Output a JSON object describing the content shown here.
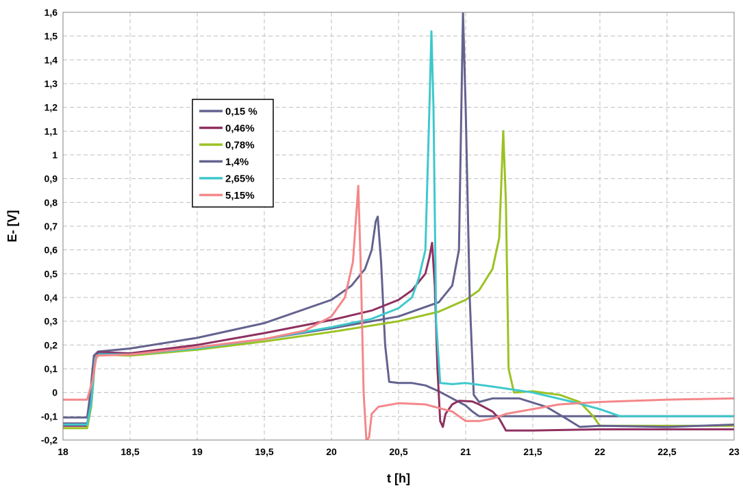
{
  "chart_data": {
    "type": "line",
    "title": "",
    "xlabel": "t [h]",
    "ylabel": "E- [V]",
    "xlim": [
      18,
      23
    ],
    "ylim": [
      -0.2,
      1.6
    ],
    "x_ticks": [
      "18",
      "18,5",
      "19",
      "19,5",
      "20",
      "20,5",
      "21",
      "21,5",
      "22",
      "22,5",
      "23"
    ],
    "y_ticks": [
      "-0,2",
      "-0,1",
      "0",
      "0,1",
      "0,2",
      "0,3",
      "0,4",
      "0,5",
      "0,6",
      "0,7",
      "0,8",
      "0,9",
      "1",
      "1,1",
      "1,2",
      "1,3",
      "1,4",
      "1,5",
      "1,6"
    ],
    "grid": true,
    "legend_position": "upper-left",
    "series": [
      {
        "name": "0,15 %",
        "color": "#63628F",
        "points": [
          [
            18.0,
            -0.105
          ],
          [
            18.18,
            -0.105
          ],
          [
            18.2,
            -0.02
          ],
          [
            18.23,
            0.155
          ],
          [
            18.26,
            0.172
          ],
          [
            18.5,
            0.185
          ],
          [
            19.0,
            0.23
          ],
          [
            19.5,
            0.292
          ],
          [
            20.0,
            0.39
          ],
          [
            20.15,
            0.45
          ],
          [
            20.25,
            0.52
          ],
          [
            20.3,
            0.6
          ],
          [
            20.33,
            0.72
          ],
          [
            20.345,
            0.74
          ],
          [
            20.37,
            0.55
          ],
          [
            20.4,
            0.2
          ],
          [
            20.43,
            0.045
          ],
          [
            20.5,
            0.04
          ],
          [
            20.6,
            0.04
          ],
          [
            20.7,
            0.03
          ],
          [
            20.8,
            0.005
          ],
          [
            20.9,
            -0.025
          ],
          [
            21.0,
            -0.055
          ],
          [
            21.05,
            -0.08
          ],
          [
            21.1,
            -0.1
          ],
          [
            21.3,
            -0.1
          ],
          [
            21.5,
            -0.1
          ],
          [
            22.0,
            -0.1
          ],
          [
            22.5,
            -0.1
          ],
          [
            23.0,
            -0.1
          ]
        ]
      },
      {
        "name": "0,46%",
        "color": "#8E3060",
        "points": [
          [
            18.0,
            -0.14
          ],
          [
            18.18,
            -0.14
          ],
          [
            18.21,
            -0.05
          ],
          [
            18.24,
            0.15
          ],
          [
            18.27,
            0.17
          ],
          [
            18.5,
            0.165
          ],
          [
            19.0,
            0.2
          ],
          [
            19.5,
            0.25
          ],
          [
            20.0,
            0.305
          ],
          [
            20.3,
            0.345
          ],
          [
            20.5,
            0.39
          ],
          [
            20.6,
            0.43
          ],
          [
            20.7,
            0.5
          ],
          [
            20.73,
            0.57
          ],
          [
            20.75,
            0.63
          ],
          [
            20.77,
            0.45
          ],
          [
            20.79,
            0.1
          ],
          [
            20.81,
            -0.12
          ],
          [
            20.83,
            -0.145
          ],
          [
            20.85,
            -0.09
          ],
          [
            20.9,
            -0.05
          ],
          [
            20.95,
            -0.035
          ],
          [
            21.05,
            -0.038
          ],
          [
            21.1,
            -0.05
          ],
          [
            21.2,
            -0.08
          ],
          [
            21.25,
            -0.11
          ],
          [
            21.3,
            -0.16
          ],
          [
            21.5,
            -0.16
          ],
          [
            22.0,
            -0.155
          ],
          [
            22.5,
            -0.155
          ],
          [
            23.0,
            -0.155
          ]
        ]
      },
      {
        "name": "0,78%",
        "color": "#9BC223",
        "points": [
          [
            18.0,
            -0.15
          ],
          [
            18.18,
            -0.15
          ],
          [
            18.21,
            -0.06
          ],
          [
            18.24,
            0.14
          ],
          [
            18.27,
            0.16
          ],
          [
            18.5,
            0.155
          ],
          [
            19.0,
            0.18
          ],
          [
            19.5,
            0.215
          ],
          [
            20.0,
            0.255
          ],
          [
            20.5,
            0.3
          ],
          [
            20.8,
            0.34
          ],
          [
            21.0,
            0.39
          ],
          [
            21.1,
            0.43
          ],
          [
            21.2,
            0.52
          ],
          [
            21.25,
            0.65
          ],
          [
            21.28,
            1.1
          ],
          [
            21.3,
            0.8
          ],
          [
            21.32,
            0.1
          ],
          [
            21.36,
            0.0
          ],
          [
            21.5,
            0.005
          ],
          [
            21.7,
            -0.01
          ],
          [
            21.85,
            -0.04
          ],
          [
            21.95,
            -0.1
          ],
          [
            22.0,
            -0.14
          ],
          [
            22.5,
            -0.14
          ],
          [
            23.0,
            -0.14
          ]
        ]
      },
      {
        "name": "1,4%",
        "color": "#63628F",
        "points": [
          [
            18.0,
            -0.13
          ],
          [
            18.18,
            -0.13
          ],
          [
            18.21,
            -0.04
          ],
          [
            18.24,
            0.15
          ],
          [
            18.27,
            0.165
          ],
          [
            18.5,
            0.16
          ],
          [
            19.0,
            0.19
          ],
          [
            19.5,
            0.225
          ],
          [
            20.0,
            0.27
          ],
          [
            20.5,
            0.32
          ],
          [
            20.8,
            0.38
          ],
          [
            20.9,
            0.45
          ],
          [
            20.95,
            0.6
          ],
          [
            20.98,
            1.6
          ],
          [
            21.0,
            1.2
          ],
          [
            21.03,
            0.4
          ],
          [
            21.06,
            -0.01
          ],
          [
            21.1,
            -0.04
          ],
          [
            21.2,
            -0.025
          ],
          [
            21.4,
            -0.025
          ],
          [
            21.6,
            -0.06
          ],
          [
            21.75,
            -0.11
          ],
          [
            21.85,
            -0.145
          ],
          [
            22.0,
            -0.14
          ],
          [
            22.5,
            -0.145
          ],
          [
            23.0,
            -0.135
          ]
        ]
      },
      {
        "name": "2,65%",
        "color": "#3EC8CC",
        "points": [
          [
            18.0,
            -0.135
          ],
          [
            18.18,
            -0.135
          ],
          [
            18.21,
            -0.045
          ],
          [
            18.24,
            0.145
          ],
          [
            18.27,
            0.16
          ],
          [
            18.5,
            0.16
          ],
          [
            19.0,
            0.185
          ],
          [
            19.5,
            0.225
          ],
          [
            20.0,
            0.275
          ],
          [
            20.3,
            0.31
          ],
          [
            20.5,
            0.355
          ],
          [
            20.6,
            0.4
          ],
          [
            20.65,
            0.48
          ],
          [
            20.7,
            0.6
          ],
          [
            20.73,
            1.2
          ],
          [
            20.745,
            1.52
          ],
          [
            20.76,
            1.2
          ],
          [
            20.78,
            0.3
          ],
          [
            20.81,
            0.04
          ],
          [
            20.9,
            0.035
          ],
          [
            21.0,
            0.04
          ],
          [
            21.2,
            0.025
          ],
          [
            21.5,
            0.0
          ],
          [
            21.8,
            -0.04
          ],
          [
            22.0,
            -0.07
          ],
          [
            22.15,
            -0.1
          ],
          [
            22.5,
            -0.1
          ],
          [
            23.0,
            -0.1
          ]
        ]
      },
      {
        "name": "5,15%",
        "color": "#F4878A",
        "points": [
          [
            18.0,
            -0.03
          ],
          [
            18.18,
            -0.03
          ],
          [
            18.22,
            0.05
          ],
          [
            18.25,
            0.155
          ],
          [
            18.5,
            0.16
          ],
          [
            19.0,
            0.19
          ],
          [
            19.5,
            0.225
          ],
          [
            19.8,
            0.26
          ],
          [
            20.0,
            0.32
          ],
          [
            20.1,
            0.4
          ],
          [
            20.16,
            0.55
          ],
          [
            20.2,
            0.87
          ],
          [
            20.22,
            0.5
          ],
          [
            20.24,
            0.0
          ],
          [
            20.26,
            -0.2
          ],
          [
            20.28,
            -0.19
          ],
          [
            20.3,
            -0.09
          ],
          [
            20.35,
            -0.06
          ],
          [
            20.5,
            -0.045
          ],
          [
            20.7,
            -0.05
          ],
          [
            20.9,
            -0.08
          ],
          [
            21.0,
            -0.12
          ],
          [
            21.1,
            -0.12
          ],
          [
            21.2,
            -0.11
          ],
          [
            21.3,
            -0.09
          ],
          [
            21.5,
            -0.07
          ],
          [
            21.7,
            -0.05
          ],
          [
            22.0,
            -0.04
          ],
          [
            22.5,
            -0.03
          ],
          [
            23.0,
            -0.025
          ]
        ]
      }
    ]
  }
}
